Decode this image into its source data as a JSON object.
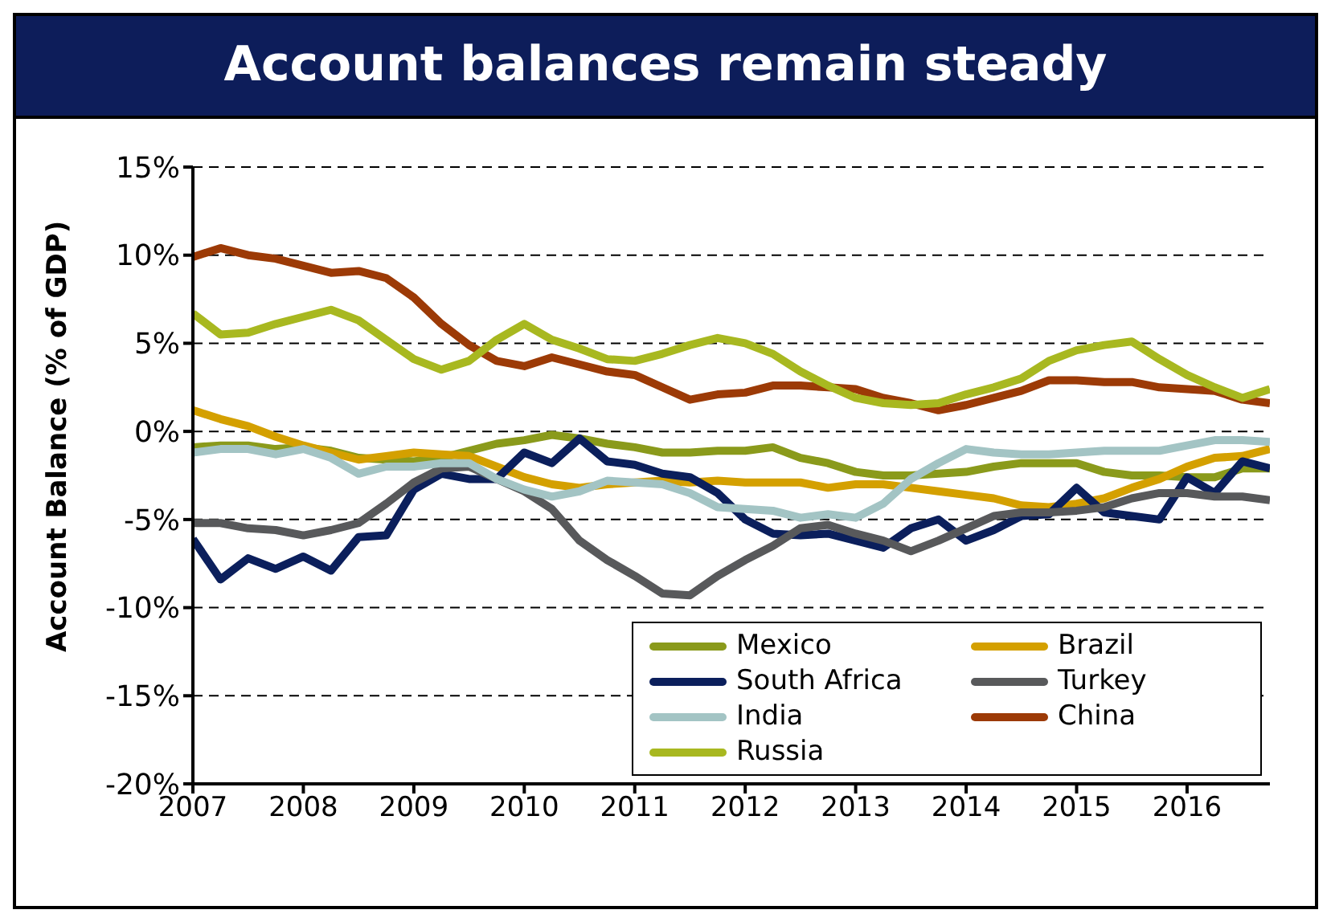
{
  "chart_data": {
    "type": "line",
    "title": "Account balances remain steady",
    "ylabel": "Account Balance (% of GDP)",
    "x": [
      2007,
      2007.25,
      2007.5,
      2007.75,
      2008,
      2008.25,
      2008.5,
      2008.75,
      2009,
      2009.25,
      2009.5,
      2009.75,
      2010,
      2010.25,
      2010.5,
      2010.75,
      2011,
      2011.25,
      2011.5,
      2011.75,
      2012,
      2012.25,
      2012.5,
      2012.75,
      2013,
      2013.25,
      2013.5,
      2013.75,
      2014,
      2014.25,
      2014.5,
      2014.75,
      2015,
      2015.25,
      2015.5,
      2015.75,
      2016,
      2016.25,
      2016.5,
      2016.75
    ],
    "xlim": [
      2007,
      2016.75
    ],
    "xticks": [
      2007,
      2008,
      2009,
      2010,
      2011,
      2012,
      2013,
      2014,
      2015,
      2016
    ],
    "ylim": [
      -20,
      15
    ],
    "yticks": [
      {
        "value": -20,
        "label": "-20%"
      },
      {
        "value": -15,
        "label": "-15%"
      },
      {
        "value": -10,
        "label": "-10%"
      },
      {
        "value": -5,
        "label": "-5%"
      },
      {
        "value": 0,
        "label": "0%"
      },
      {
        "value": 5,
        "label": "5%"
      },
      {
        "value": 10,
        "label": "10%"
      },
      {
        "value": 15,
        "label": "15%"
      }
    ],
    "grid": "y",
    "legend": "bottom right",
    "marker": "none",
    "line_style": "solid",
    "series": [
      {
        "name": "Mexico",
        "color": "#8a9a1b",
        "values": [
          -0.9,
          -0.8,
          -0.8,
          -1.0,
          -0.9,
          -1.1,
          -1.5,
          -1.6,
          -1.7,
          -1.5,
          -1.1,
          -0.7,
          -0.5,
          -0.2,
          -0.4,
          -0.7,
          -0.9,
          -1.2,
          -1.2,
          -1.1,
          -1.1,
          -0.9,
          -1.5,
          -1.8,
          -2.3,
          -2.5,
          -2.5,
          -2.4,
          -2.3,
          -2.0,
          -1.8,
          -1.8,
          -1.8,
          -2.3,
          -2.5,
          -2.5,
          -2.6,
          -2.6,
          -2.1,
          -2.1
        ]
      },
      {
        "name": "Brazil",
        "color": "#d4a000",
        "values": [
          1.2,
          0.7,
          0.3,
          -0.3,
          -0.8,
          -1.2,
          -1.6,
          -1.4,
          -1.2,
          -1.3,
          -1.4,
          -2.0,
          -2.6,
          -3.0,
          -3.2,
          -3.0,
          -2.9,
          -2.8,
          -2.9,
          -2.8,
          -2.9,
          -2.9,
          -2.9,
          -3.2,
          -3.0,
          -3.0,
          -3.2,
          -3.4,
          -3.6,
          -3.8,
          -4.2,
          -4.3,
          -4.1,
          -3.8,
          -3.2,
          -2.7,
          -2.0,
          -1.5,
          -1.4,
          -1.0
        ]
      },
      {
        "name": "South Africa",
        "color": "#0b1f5c",
        "values": [
          -6.1,
          -8.4,
          -7.2,
          -7.8,
          -7.1,
          -7.9,
          -6.0,
          -5.9,
          -3.3,
          -2.4,
          -2.7,
          -2.7,
          -1.2,
          -1.8,
          -0.4,
          -1.7,
          -1.9,
          -2.4,
          -2.6,
          -3.5,
          -5.0,
          -5.8,
          -5.9,
          -5.8,
          -6.2,
          -6.6,
          -5.5,
          -5.0,
          -6.2,
          -5.6,
          -4.8,
          -4.7,
          -3.2,
          -4.6,
          -4.8,
          -5.0,
          -2.6,
          -3.5,
          -1.7,
          -2.1
        ]
      },
      {
        "name": "Turkey",
        "color": "#58595b",
        "values": [
          -5.2,
          -5.2,
          -5.5,
          -5.6,
          -5.9,
          -5.6,
          -5.2,
          -4.1,
          -2.9,
          -2.1,
          -2.0,
          -2.7,
          -3.4,
          -4.4,
          -6.2,
          -7.3,
          -8.2,
          -9.2,
          -9.3,
          -8.2,
          -7.3,
          -6.5,
          -5.5,
          -5.3,
          -5.8,
          -6.2,
          -6.8,
          -6.2,
          -5.5,
          -4.8,
          -4.6,
          -4.6,
          -4.5,
          -4.3,
          -3.8,
          -3.5,
          -3.5,
          -3.7,
          -3.7,
          -3.9
        ]
      },
      {
        "name": "India",
        "color": "#a3c4c4",
        "values": [
          -1.2,
          -1.0,
          -1.0,
          -1.3,
          -1.0,
          -1.5,
          -2.4,
          -2.0,
          -2.0,
          -1.8,
          -1.8,
          -2.7,
          -3.3,
          -3.7,
          -3.4,
          -2.8,
          -2.9,
          -3.0,
          -3.5,
          -4.3,
          -4.4,
          -4.5,
          -4.9,
          -4.7,
          -4.9,
          -4.1,
          -2.7,
          -1.8,
          -1.0,
          -1.2,
          -1.3,
          -1.3,
          -1.2,
          -1.1,
          -1.1,
          -1.1,
          -0.8,
          -0.5,
          -0.5,
          -0.6
        ]
      },
      {
        "name": "China",
        "color": "#9c3a06",
        "values": [
          9.9,
          10.4,
          10.0,
          9.8,
          9.4,
          9.0,
          9.1,
          8.7,
          7.6,
          6.1,
          4.9,
          4.0,
          3.7,
          4.2,
          3.8,
          3.4,
          3.2,
          2.5,
          1.8,
          2.1,
          2.2,
          2.6,
          2.6,
          2.5,
          2.4,
          1.9,
          1.6,
          1.2,
          1.5,
          1.9,
          2.3,
          2.9,
          2.9,
          2.8,
          2.8,
          2.5,
          2.4,
          2.3,
          1.8,
          1.6
        ]
      },
      {
        "name": "Russia",
        "color": "#a8b820",
        "values": [
          6.7,
          5.5,
          5.6,
          6.1,
          6.5,
          6.9,
          6.3,
          5.2,
          4.1,
          3.5,
          4.0,
          5.2,
          6.1,
          5.2,
          4.7,
          4.1,
          4.0,
          4.4,
          4.9,
          5.3,
          5.0,
          4.4,
          3.4,
          2.6,
          1.9,
          1.6,
          1.5,
          1.6,
          2.1,
          2.5,
          3.0,
          4.0,
          4.6,
          4.9,
          5.1,
          4.1,
          3.2,
          2.5,
          1.9,
          2.4
        ]
      }
    ]
  }
}
